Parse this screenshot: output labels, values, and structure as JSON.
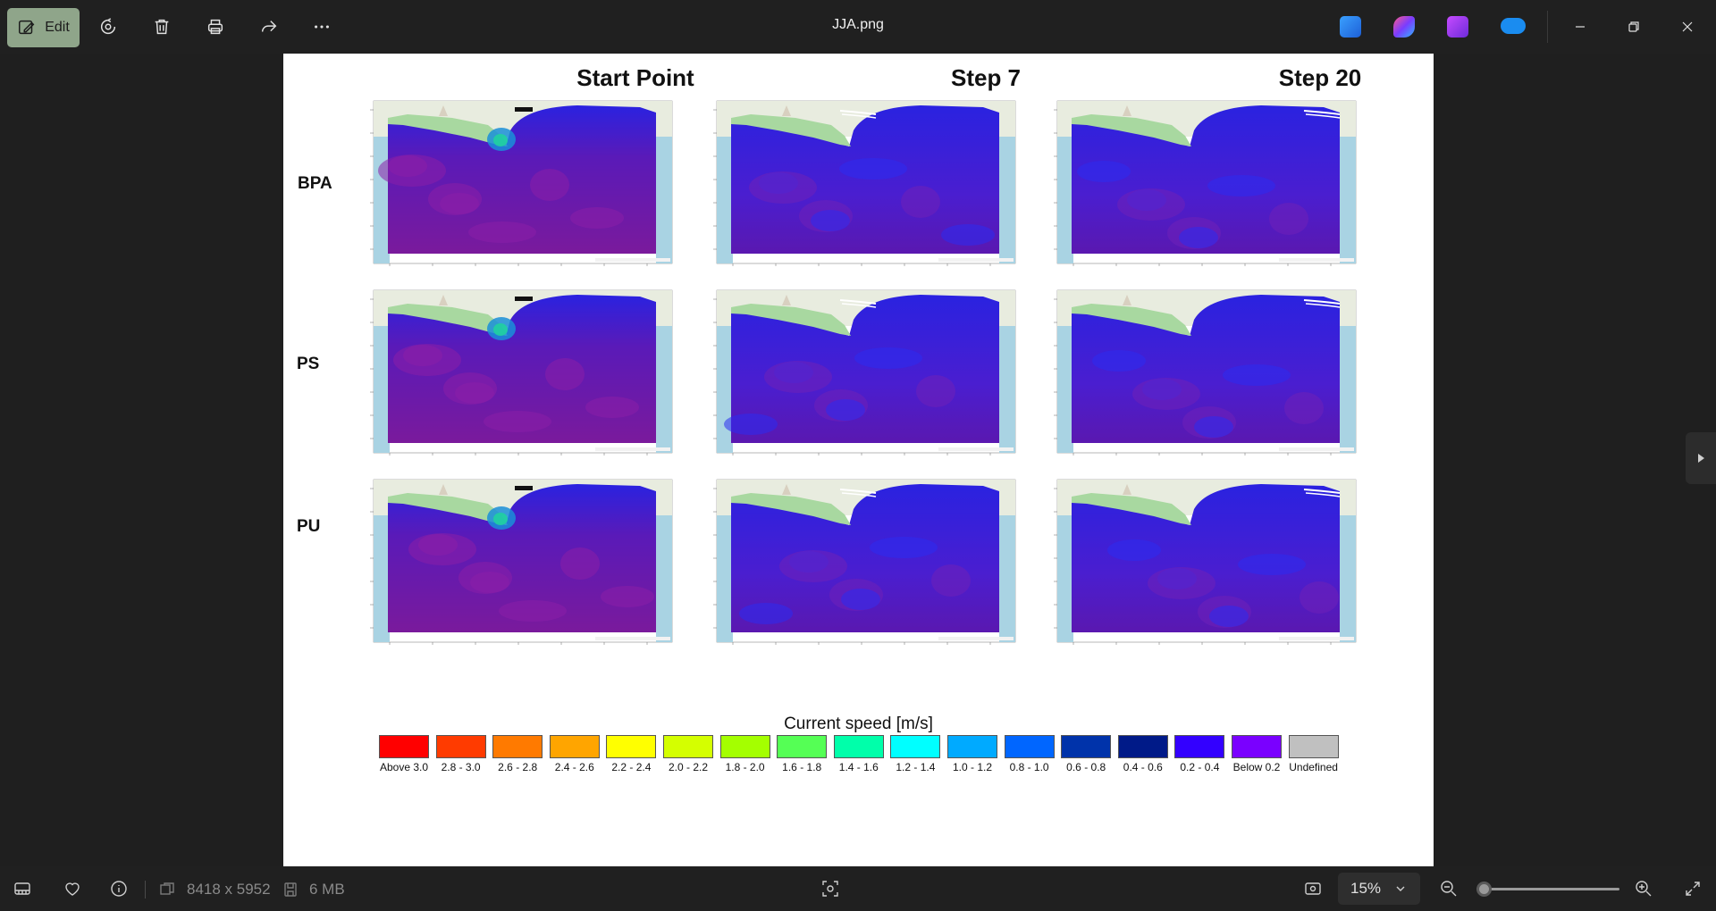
{
  "toolbar": {
    "edit_label": "Edit",
    "title": "JJA.png",
    "icons": [
      "edit-icon",
      "rotate-icon",
      "delete-icon",
      "print-icon",
      "share-icon",
      "more-icon"
    ],
    "app_icons": [
      "photos-editor-app-icon",
      "copilot-app-icon",
      "clipchamp-app-icon",
      "onedrive-app-icon"
    ],
    "window_controls": [
      "minimize-icon",
      "restore-icon",
      "close-icon"
    ]
  },
  "figure": {
    "columns": [
      "Start Point",
      "Step 7",
      "Step 20"
    ],
    "rows": [
      "BPA",
      "PS",
      "PU"
    ],
    "legend_title": "Current speed [m/s]",
    "legend": [
      {
        "label": "Above 3.0",
        "color": "#ff0000"
      },
      {
        "label": "2.8 - 3.0",
        "color": "#ff3b00"
      },
      {
        "label": "2.6 - 2.8",
        "color": "#ff7a00"
      },
      {
        "label": "2.4 - 2.6",
        "color": "#ffa500"
      },
      {
        "label": "2.2 - 2.4",
        "color": "#ffff00"
      },
      {
        "label": "2.0 - 2.2",
        "color": "#d4ff00"
      },
      {
        "label": "1.8 - 2.0",
        "color": "#a4ff00"
      },
      {
        "label": "1.6 - 1.8",
        "color": "#55ff55"
      },
      {
        "label": "1.4 - 1.6",
        "color": "#00ffaa"
      },
      {
        "label": "1.2 - 1.4",
        "color": "#00ffff"
      },
      {
        "label": "1.0 - 1.2",
        "color": "#00aaff"
      },
      {
        "label": "0.8 - 1.0",
        "color": "#0066ff"
      },
      {
        "label": "0.6 - 0.8",
        "color": "#0033aa"
      },
      {
        "label": "0.4 - 0.6",
        "color": "#001a88"
      },
      {
        "label": "0.2 - 0.4",
        "color": "#3300ff"
      },
      {
        "label": "Below 0.2",
        "color": "#7a00ff"
      },
      {
        "label": "Undefined",
        "color": "#c0c0c0"
      }
    ]
  },
  "statusbar": {
    "dimensions": "8418 x 5952",
    "file_size": "6 MB",
    "zoom": "15%",
    "zoom_level_fraction": 0.0,
    "icons": [
      "filmstrip-icon",
      "favorite-icon",
      "info-icon",
      "dimensions-icon",
      "file-size-icon",
      "visual-search-icon",
      "fit-to-window-icon",
      "zoom-out-icon",
      "zoom-in-icon",
      "full-screen-icon"
    ]
  },
  "colors": {
    "edit_accent": "#8fa58a",
    "ocean_purple": "#7a1a9c",
    "ocean_blue": "#2a22e0",
    "land_green": "#a8d8a0"
  }
}
